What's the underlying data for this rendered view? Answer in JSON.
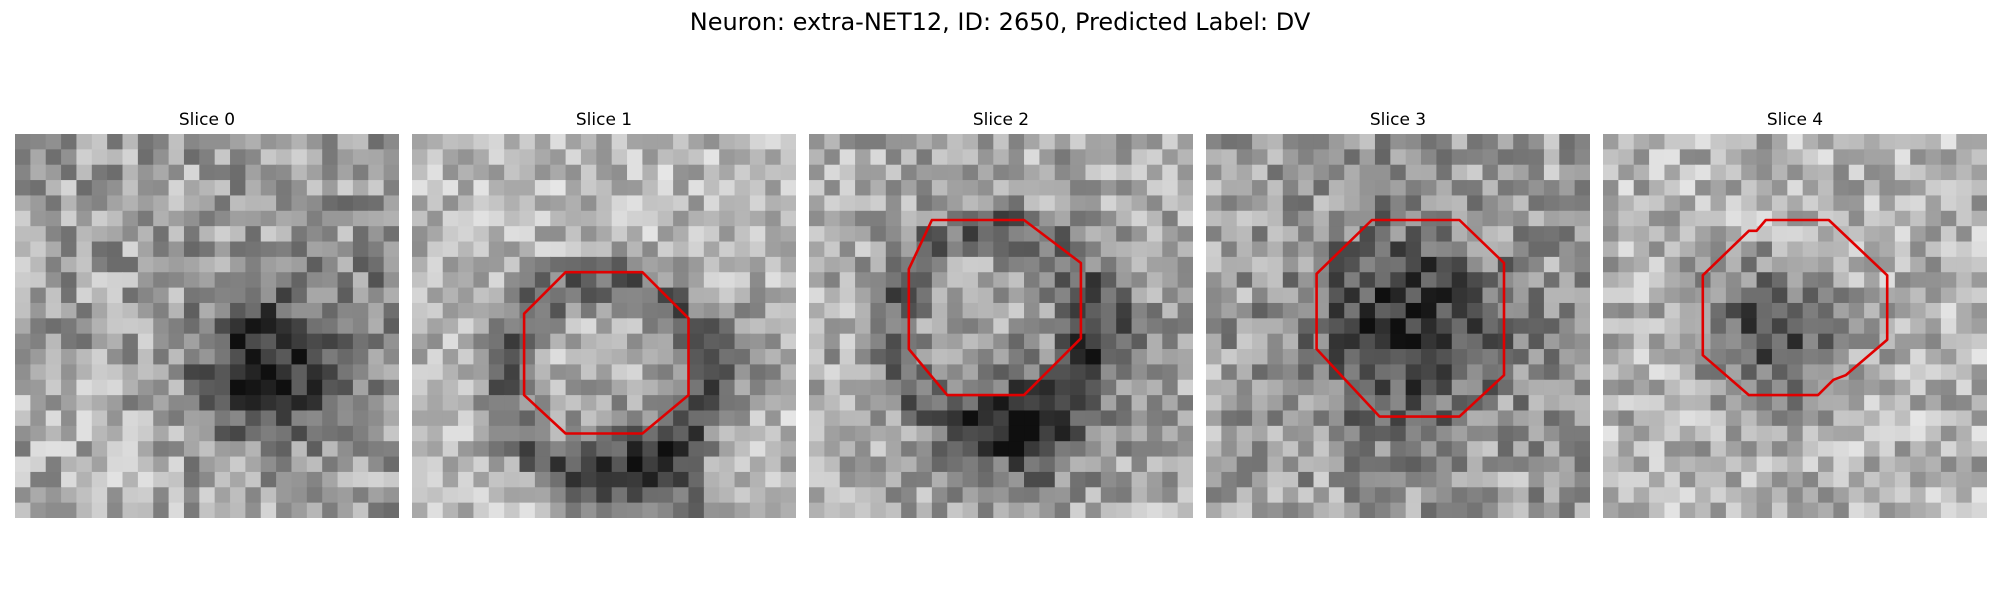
{
  "title": "Neuron: extra-NET12, ID: 2650, Predicted Label: DV",
  "contour_color": "#e00000",
  "slices": [
    {
      "label": "Slice 0",
      "has_contour": false
    },
    {
      "label": "Slice 1",
      "has_contour": true
    },
    {
      "label": "Slice 2",
      "has_contour": true
    },
    {
      "label": "Slice 3",
      "has_contour": true
    },
    {
      "label": "Slice 4",
      "has_contour": true
    }
  ]
}
